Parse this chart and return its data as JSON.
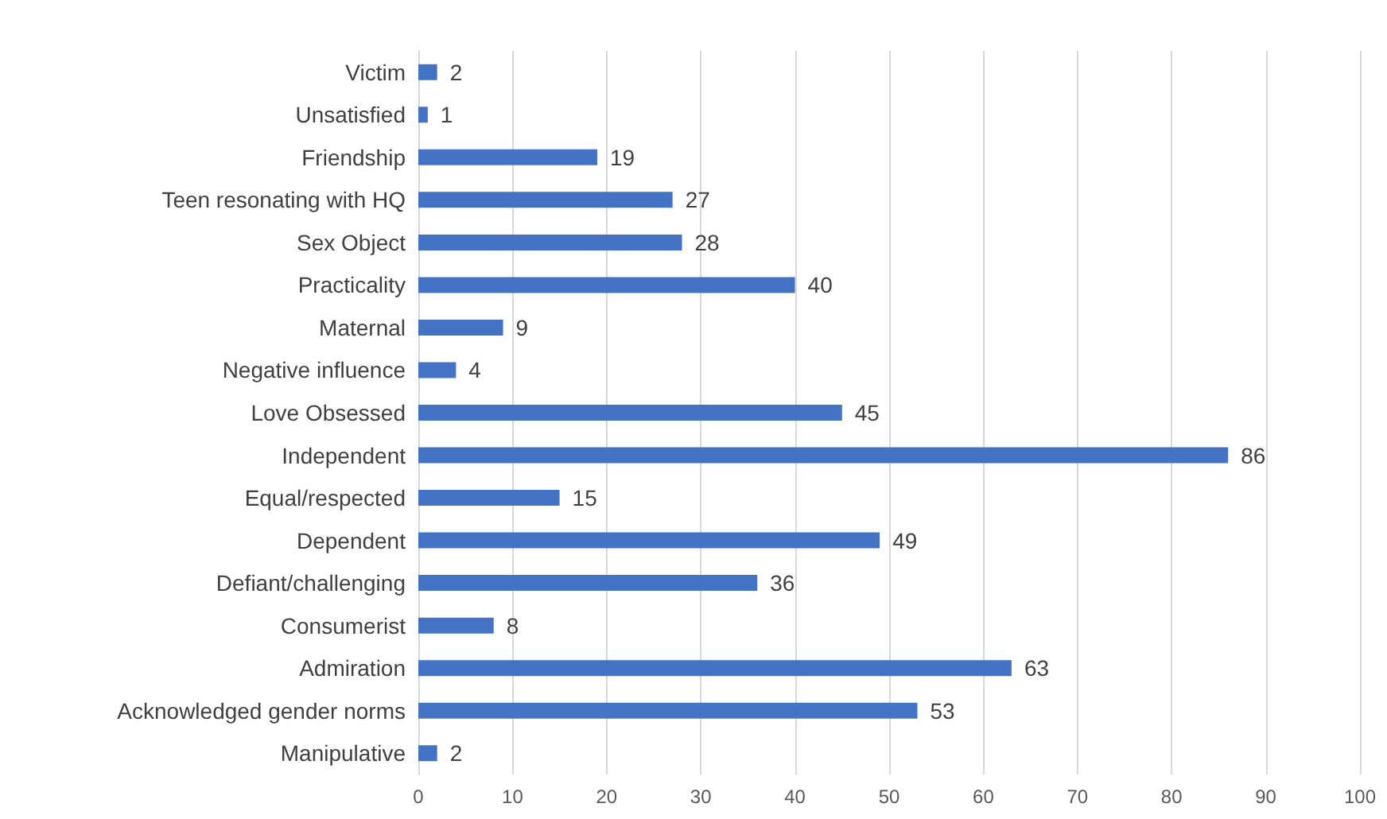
{
  "chart_data": {
    "type": "bar",
    "orientation": "horizontal",
    "categories": [
      "Victim",
      "Unsatisfied",
      "Friendship",
      "Teen resonating with HQ",
      "Sex Object",
      "Practicality",
      "Maternal",
      "Negative influence",
      "Love Obsessed",
      "Independent",
      "Equal/respected",
      "Dependent",
      "Defiant/challenging",
      "Consumerist",
      "Admiration",
      "Acknowledged gender norms",
      "Manipulative"
    ],
    "values": [
      2,
      1,
      19,
      27,
      28,
      40,
      9,
      4,
      45,
      86,
      15,
      49,
      36,
      8,
      63,
      53,
      2
    ],
    "color": "#4472c4",
    "xlim": [
      0,
      100
    ],
    "xticks": [
      0,
      10,
      20,
      30,
      40,
      50,
      60,
      70,
      80,
      90,
      100
    ],
    "grid": "x",
    "data_labels": true
  }
}
